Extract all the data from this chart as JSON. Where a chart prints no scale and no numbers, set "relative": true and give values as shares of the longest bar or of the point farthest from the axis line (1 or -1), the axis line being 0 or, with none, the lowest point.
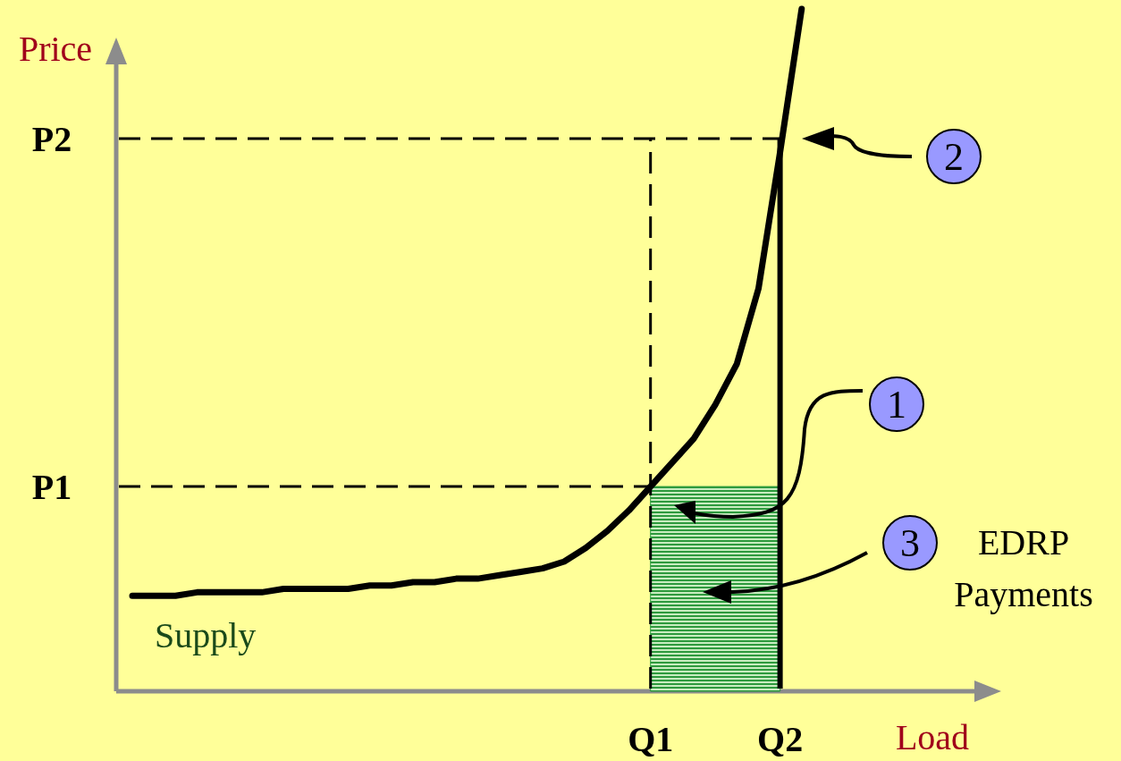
{
  "chart_data": {
    "type": "line",
    "relative": true,
    "legend": false,
    "xlabel": "Load",
    "ylabel": "Price",
    "categories": [
      null,
      null,
      null,
      null,
      null,
      null,
      null,
      null,
      null,
      null,
      null,
      null,
      null,
      null,
      null,
      null,
      null,
      null,
      null,
      null,
      null,
      null,
      null,
      null,
      "Q1",
      null,
      null,
      null,
      null,
      null,
      "Q2",
      null,
      null,
      null,
      null,
      null,
      null,
      null,
      null,
      null
    ],
    "series": [
      {
        "name": "Supply",
        "color": "#000000",
        "values": [
          0.14,
          0.14,
          0.14,
          0.145,
          0.145,
          0.145,
          0.145,
          0.15,
          0.15,
          0.15,
          0.15,
          0.155,
          0.155,
          0.16,
          0.16,
          0.165,
          0.165,
          0.17,
          0.175,
          0.18,
          0.19,
          0.21,
          0.235,
          0.265,
          0.3,
          0.335,
          0.37,
          0.42,
          0.48,
          0.59,
          0.79,
          1.0,
          null,
          null,
          null,
          null,
          null,
          null,
          null,
          null
        ]
      },
      {
        "type": "area",
        "color": "#2e9a3e",
        "values": [
          null,
          null,
          null,
          null,
          null,
          null,
          null,
          null,
          null,
          null,
          null,
          null,
          null,
          null,
          null,
          null,
          null,
          null,
          null,
          null,
          null,
          null,
          null,
          null,
          0.3,
          0.3,
          0.3,
          0.3,
          0.3,
          0.3,
          0.3,
          null,
          null,
          null,
          null,
          null,
          null,
          null,
          null,
          null
        ]
      }
    ],
    "ref_lines": [
      {
        "axis": "y",
        "value": 0.81,
        "label": "P2",
        "line_style": "dashed"
      },
      {
        "axis": "y",
        "value": 0.3,
        "label": "P1",
        "line_style": "dashed"
      },
      {
        "axis": "x",
        "value": "Q1",
        "line_style": "dashed"
      },
      {
        "axis": "x",
        "value": "Q2",
        "line_style": "solid"
      }
    ],
    "annotations": [
      "2",
      "1",
      "3",
      "EDRP Payments"
    ]
  }
}
